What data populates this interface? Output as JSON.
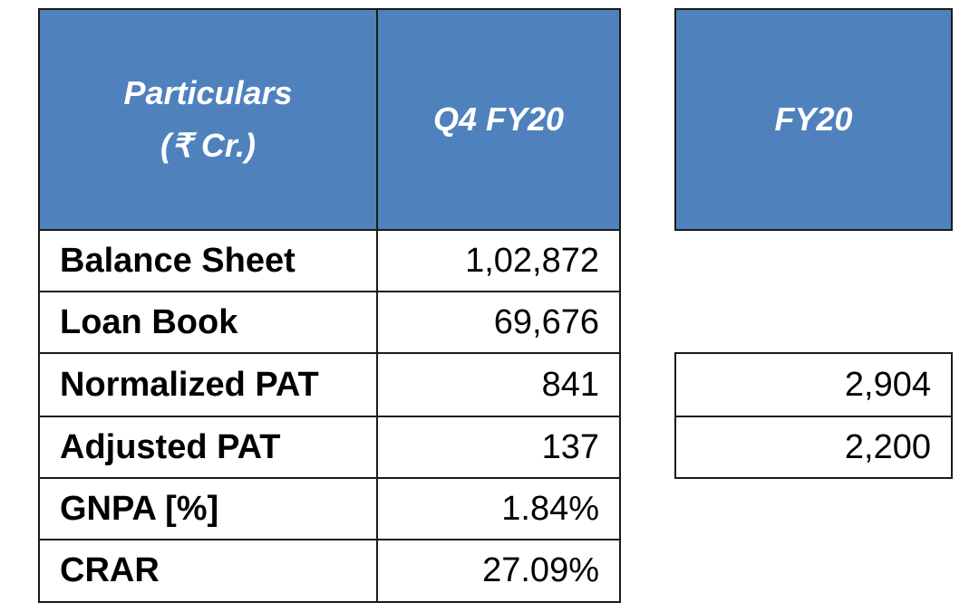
{
  "headers": {
    "particulars_line1": "Particulars",
    "particulars_line2": "(₹ Cr.)",
    "q4": "Q4 FY20",
    "fy20": "FY20"
  },
  "rows": [
    {
      "label": "Balance Sheet",
      "q4": "1,02,872",
      "fy20": ""
    },
    {
      "label": "Loan Book",
      "q4": "69,676",
      "fy20": ""
    },
    {
      "label": "Normalized PAT",
      "q4": "841",
      "fy20": "2,904"
    },
    {
      "label": "Adjusted PAT",
      "q4": "137",
      "fy20": "2,200"
    },
    {
      "label": "GNPA [%]",
      "q4": "1.84%",
      "fy20": ""
    },
    {
      "label": "CRAR",
      "q4": "27.09%",
      "fy20": ""
    }
  ],
  "colors": {
    "header_fill": "#4f81bd",
    "header_text": "#ffffff",
    "border": "#1a1a1a"
  }
}
